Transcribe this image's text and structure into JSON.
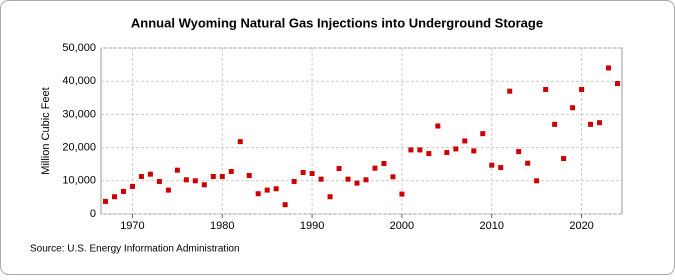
{
  "chart_data": {
    "type": "scatter",
    "title": "Annual Wyoming Natural Gas Injections into Underground Storage",
    "y_label": "Million Cubic Feet",
    "source": "Source: U.S. Energy Information Administration",
    "color": "#cc0000",
    "grid": true,
    "x": [
      1967,
      1968,
      1969,
      1970,
      1971,
      1972,
      1973,
      1974,
      1975,
      1976,
      1977,
      1978,
      1979,
      1980,
      1981,
      1982,
      1983,
      1984,
      1985,
      1986,
      1987,
      1988,
      1989,
      1990,
      1991,
      1992,
      1993,
      1994,
      1995,
      1996,
      1997,
      1998,
      1999,
      2000,
      2001,
      2002,
      2003,
      2004,
      2005,
      2006,
      2007,
      2008,
      2009,
      2010,
      2011,
      2012,
      2013,
      2014,
      2015,
      2016,
      2017,
      2018,
      2019,
      2020,
      2021,
      2022,
      2023,
      2024
    ],
    "values": [
      3800,
      5200,
      6800,
      8300,
      11300,
      12000,
      9800,
      7200,
      13200,
      10300,
      10000,
      8800,
      11300,
      11300,
      12800,
      21800,
      11600,
      6100,
      7200,
      7600,
      2800,
      9800,
      12500,
      12200,
      10500,
      5200,
      13700,
      10500,
      9300,
      10300,
      13800,
      15200,
      11200,
      6000,
      19300,
      19300,
      18200,
      26500,
      18500,
      19600,
      22000,
      19000,
      24200,
      14700,
      14000,
      37000,
      18800,
      15300,
      10000,
      37500,
      27000,
      16700,
      32000,
      37500,
      27000,
      27500,
      44000,
      39300
    ],
    "xlim": [
      1966.5,
      2024.5
    ],
    "xticks": [
      1970,
      1980,
      1990,
      2000,
      2010,
      2020
    ],
    "ylim": [
      0,
      50000
    ],
    "yticks": [
      0,
      {
        "value": 10000,
        "label": "10,000"
      },
      {
        "value": 20000,
        "label": "20,000"
      },
      {
        "value": 30000,
        "label": "30,000"
      },
      {
        "value": 40000,
        "label": "40,000"
      },
      {
        "value": 50000,
        "label": "50,000"
      }
    ]
  }
}
